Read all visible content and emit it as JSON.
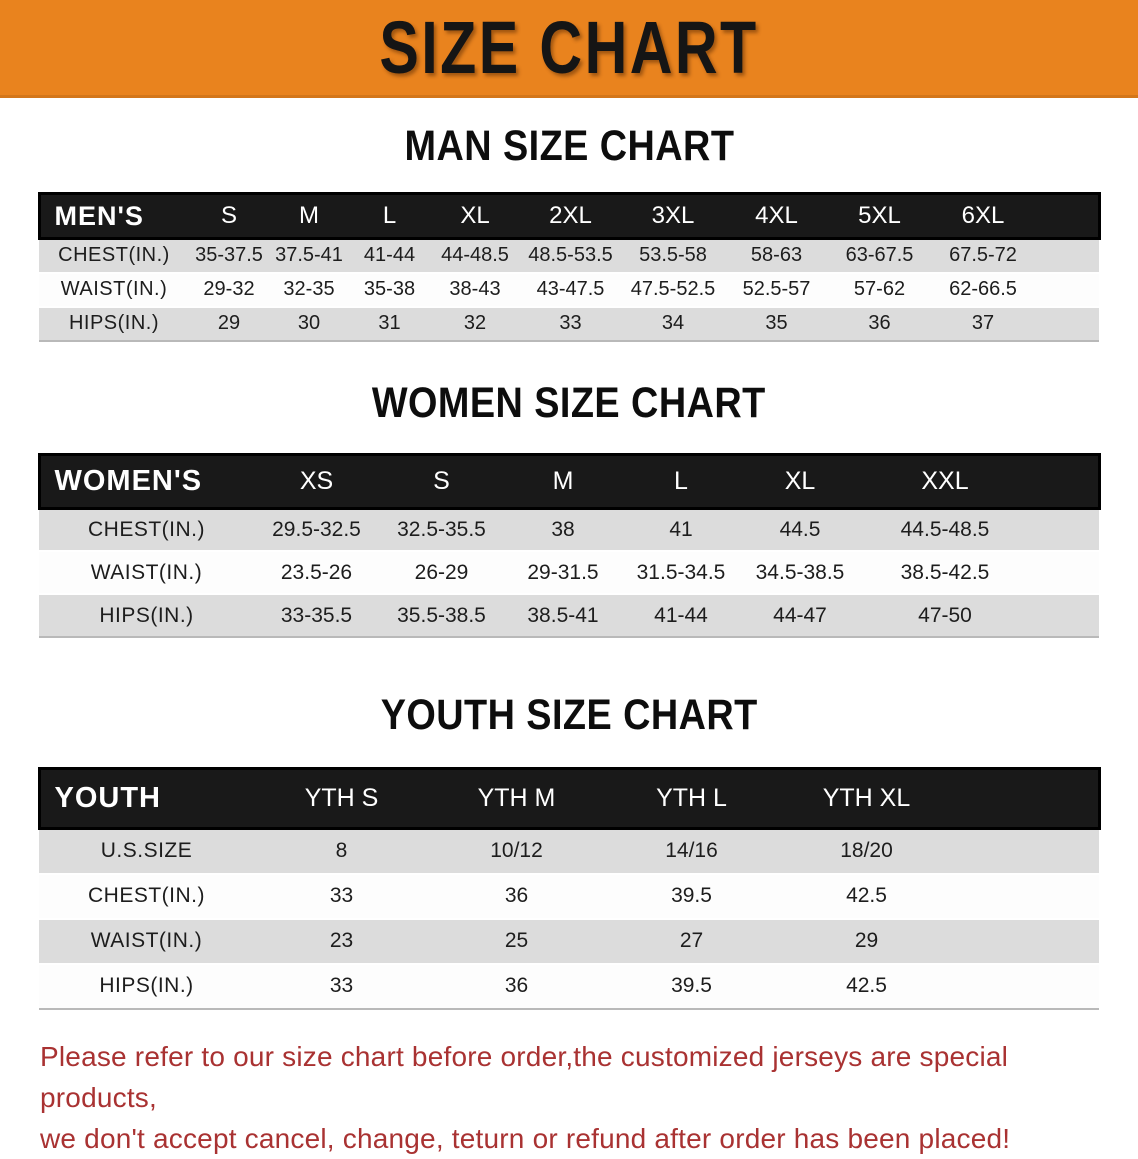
{
  "banner": {
    "title": "SIZE CHART"
  },
  "colors": {
    "banner_orange": "#E9831E",
    "band_black": "#191919",
    "row_gray": "#DCDCDC",
    "warning_red": "#A93232"
  },
  "sections": [
    {
      "id": "men",
      "heading": "MAN SIZE CHART",
      "table": {
        "header_label": "MEN'S",
        "sizes": [
          "S",
          "M",
          "L",
          "XL",
          "2XL",
          "3XL",
          "4XL",
          "5XL",
          "6XL"
        ],
        "rows": [
          {
            "label": "CHEST(IN.)",
            "values": [
              "35-37.5",
              "37.5-41",
              "41-44",
              "44-48.5",
              "48.5-53.5",
              "53.5-58",
              "58-63",
              "63-67.5",
              "67.5-72"
            ]
          },
          {
            "label": "WAIST(IN.)",
            "values": [
              "29-32",
              "32-35",
              "35-38",
              "38-43",
              "43-47.5",
              "47.5-52.5",
              "52.5-57",
              "57-62",
              "62-66.5"
            ]
          },
          {
            "label": "HIPS(IN.)",
            "values": [
              "29",
              "30",
              "31",
              "32",
              "33",
              "34",
              "35",
              "36",
              "37"
            ]
          }
        ]
      }
    },
    {
      "id": "women",
      "heading": "WOMEN SIZE CHART",
      "table": {
        "header_label": "WOMEN'S",
        "sizes": [
          "XS",
          "S",
          "M",
          "L",
          "XL",
          "XXL"
        ],
        "rows": [
          {
            "label": "CHEST(IN.)",
            "values": [
              "29.5-32.5",
              "32.5-35.5",
              "38",
              "41",
              "44.5",
              "44.5-48.5"
            ]
          },
          {
            "label": "WAIST(IN.)",
            "values": [
              "23.5-26",
              "26-29",
              "29-31.5",
              "31.5-34.5",
              "34.5-38.5",
              "38.5-42.5"
            ]
          },
          {
            "label": "HIPS(IN.)",
            "values": [
              "33-35.5",
              "35.5-38.5",
              "38.5-41",
              "41-44",
              "44-47",
              "47-50"
            ]
          }
        ]
      }
    },
    {
      "id": "youth",
      "heading": "YOUTH SIZE CHART",
      "table": {
        "header_label": "YOUTH",
        "sizes": [
          "YTH S",
          "YTH M",
          "YTH L",
          "YTH XL"
        ],
        "rows": [
          {
            "label": "U.S.SIZE",
            "values": [
              "8",
              "10/12",
              "14/16",
              "18/20"
            ]
          },
          {
            "label": "CHEST(IN.)",
            "values": [
              "33",
              "36",
              "39.5",
              "42.5"
            ]
          },
          {
            "label": "WAIST(IN.)",
            "values": [
              "23",
              "25",
              "27",
              "29"
            ]
          },
          {
            "label": "HIPS(IN.)",
            "values": [
              "33",
              "36",
              "39.5",
              "42.5"
            ]
          }
        ]
      }
    }
  ],
  "disclaimer": {
    "lines": [
      "Please refer to our size chart before order,the customized jerseys are special products,",
      "we don't accept cancel, change, teturn or refund after order has been placed!"
    ]
  }
}
